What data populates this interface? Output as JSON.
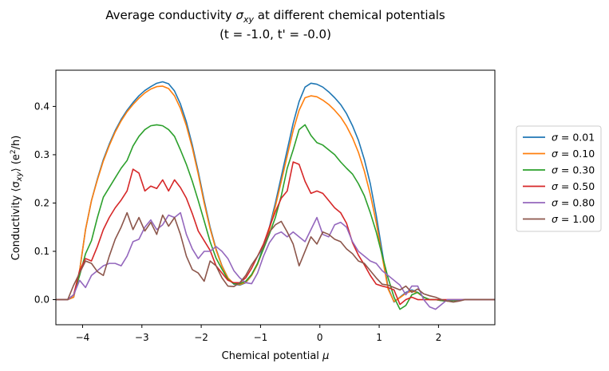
{
  "chart_data": {
    "type": "line",
    "title": "Average conductivity σxy at different chemical potentials",
    "title_parts": {
      "prefix": "Average conductivity ",
      "sigma": "σ",
      "sub": "xy",
      "suffix": " at different chemical potentials"
    },
    "subtitle": "(t = -1.0, t' = -0.0)",
    "xlabel": "Chemical potential μ",
    "xlabel_parts": {
      "text": "Chemical potential ",
      "mu": "μ"
    },
    "ylabel": "Conductivity ⟨σxy⟩ (e²/h)",
    "ylabel_parts": {
      "a": "Conductivity ⟨σ",
      "sub": "xy",
      "b": "⟩ (e",
      "sup": "2",
      "c": "/h)"
    },
    "xlim": [
      -4.45,
      2.95
    ],
    "ylim": [
      -0.052,
      0.475
    ],
    "xticks": [
      -4,
      -3,
      -2,
      -1,
      0,
      1,
      2
    ],
    "xtick_labels": [
      "−4",
      "−3",
      "−2",
      "−1",
      "0",
      "1",
      "2"
    ],
    "yticks": [
      0.0,
      0.1,
      0.2,
      0.3,
      0.4
    ],
    "ytick_labels": [
      "0.0",
      "0.1",
      "0.2",
      "0.3",
      "0.4"
    ],
    "grid": false,
    "legend_position": "outside-right",
    "x": [
      -4.45,
      -4.35,
      -4.25,
      -4.15,
      -4.05,
      -3.95,
      -3.85,
      -3.75,
      -3.65,
      -3.55,
      -3.45,
      -3.35,
      -3.25,
      -3.15,
      -3.05,
      -2.95,
      -2.85,
      -2.75,
      -2.65,
      -2.55,
      -2.45,
      -2.35,
      -2.25,
      -2.15,
      -2.05,
      -1.95,
      -1.85,
      -1.75,
      -1.65,
      -1.55,
      -1.45,
      -1.35,
      -1.25,
      -1.15,
      -1.05,
      -0.95,
      -0.85,
      -0.75,
      -0.65,
      -0.55,
      -0.45,
      -0.35,
      -0.25,
      -0.15,
      -0.05,
      0.05,
      0.15,
      0.25,
      0.35,
      0.45,
      0.55,
      0.65,
      0.75,
      0.85,
      0.95,
      1.05,
      1.15,
      1.25,
      1.35,
      1.45,
      1.55,
      1.65,
      1.75,
      1.85,
      1.95,
      2.05,
      2.15,
      2.25,
      2.35,
      2.45,
      2.55,
      2.65,
      2.75,
      2.85,
      2.95
    ],
    "series": [
      {
        "name": "σ = 0.01",
        "label_prefix": "σ = ",
        "label_value": "0.01",
        "color": "#1f77b4",
        "values": [
          0.0,
          0.0,
          0.0,
          0.005,
          0.06,
          0.145,
          0.205,
          0.25,
          0.29,
          0.322,
          0.35,
          0.373,
          0.392,
          0.408,
          0.422,
          0.433,
          0.441,
          0.448,
          0.451,
          0.447,
          0.432,
          0.405,
          0.368,
          0.32,
          0.265,
          0.205,
          0.15,
          0.105,
          0.07,
          0.045,
          0.032,
          0.03,
          0.035,
          0.05,
          0.075,
          0.11,
          0.15,
          0.2,
          0.255,
          0.31,
          0.365,
          0.41,
          0.44,
          0.448,
          0.446,
          0.44,
          0.43,
          0.418,
          0.404,
          0.385,
          0.36,
          0.33,
          0.29,
          0.24,
          0.175,
          0.1,
          0.025,
          -0.005,
          0.005,
          0.015,
          0.02,
          0.015,
          0.005,
          0.0,
          0.0,
          -0.002,
          -0.003,
          -0.002,
          -0.001,
          0.0,
          0.0,
          0.0,
          0.0,
          0.0,
          0.0
        ]
      },
      {
        "name": "σ = 0.10",
        "label_prefix": "σ = ",
        "label_value": "0.10",
        "color": "#ff7f0e",
        "values": [
          0.0,
          0.0,
          0.0,
          0.005,
          0.06,
          0.145,
          0.205,
          0.248,
          0.287,
          0.319,
          0.347,
          0.37,
          0.389,
          0.404,
          0.417,
          0.428,
          0.436,
          0.441,
          0.442,
          0.437,
          0.422,
          0.396,
          0.36,
          0.314,
          0.26,
          0.2,
          0.147,
          0.103,
          0.069,
          0.045,
          0.033,
          0.031,
          0.036,
          0.05,
          0.073,
          0.106,
          0.145,
          0.193,
          0.245,
          0.298,
          0.35,
          0.392,
          0.418,
          0.422,
          0.42,
          0.413,
          0.404,
          0.392,
          0.378,
          0.359,
          0.335,
          0.305,
          0.266,
          0.218,
          0.16,
          0.09,
          0.022,
          -0.004,
          0.004,
          0.013,
          0.018,
          0.014,
          0.005,
          0.0,
          0.0,
          -0.002,
          -0.003,
          -0.002,
          -0.001,
          0.0,
          0.0,
          0.0,
          0.0,
          0.0,
          0.0
        ]
      },
      {
        "name": "σ = 0.30",
        "label_prefix": "σ = ",
        "label_value": "0.30",
        "color": "#2ca02c",
        "values": [
          0.0,
          0.0,
          0.0,
          0.01,
          0.05,
          0.095,
          0.122,
          0.17,
          0.212,
          0.232,
          0.252,
          0.272,
          0.288,
          0.318,
          0.338,
          0.352,
          0.36,
          0.362,
          0.36,
          0.352,
          0.338,
          0.31,
          0.28,
          0.245,
          0.205,
          0.163,
          0.12,
          0.086,
          0.063,
          0.042,
          0.033,
          0.033,
          0.038,
          0.052,
          0.075,
          0.105,
          0.136,
          0.17,
          0.215,
          0.272,
          0.31,
          0.352,
          0.362,
          0.34,
          0.325,
          0.32,
          0.31,
          0.3,
          0.285,
          0.272,
          0.26,
          0.24,
          0.215,
          0.18,
          0.14,
          0.092,
          0.045,
          0.005,
          -0.02,
          -0.012,
          0.01,
          0.015,
          0.005,
          0.0,
          0.0,
          -0.002,
          -0.003,
          -0.002,
          -0.001,
          0.0,
          0.0,
          0.0,
          0.0,
          0.0,
          0.0
        ]
      },
      {
        "name": "σ = 0.50",
        "label_prefix": "σ = ",
        "label_value": "0.50",
        "color": "#d62728",
        "values": [
          0.0,
          0.0,
          0.0,
          0.01,
          0.06,
          0.085,
          0.08,
          0.11,
          0.145,
          0.17,
          0.19,
          0.206,
          0.225,
          0.27,
          0.262,
          0.225,
          0.235,
          0.23,
          0.248,
          0.225,
          0.248,
          0.232,
          0.21,
          0.178,
          0.142,
          0.122,
          0.102,
          0.07,
          0.055,
          0.04,
          0.035,
          0.035,
          0.045,
          0.065,
          0.09,
          0.115,
          0.15,
          0.182,
          0.21,
          0.225,
          0.285,
          0.28,
          0.245,
          0.22,
          0.225,
          0.22,
          0.205,
          0.19,
          0.18,
          0.158,
          0.118,
          0.092,
          0.072,
          0.05,
          0.032,
          0.028,
          0.025,
          0.02,
          -0.01,
          0.0,
          0.005,
          0.0,
          0.0,
          0.0,
          0.0,
          0.0,
          0.0,
          0.0,
          0.0,
          0.0,
          0.0,
          0.0,
          0.0,
          0.0,
          0.0
        ]
      },
      {
        "name": "σ = 0.80",
        "label_prefix": "σ = ",
        "label_value": "0.80",
        "color": "#9467bd",
        "values": [
          0.0,
          0.0,
          0.0,
          0.01,
          0.04,
          0.025,
          0.05,
          0.06,
          0.07,
          0.075,
          0.075,
          0.07,
          0.09,
          0.12,
          0.125,
          0.15,
          0.165,
          0.145,
          0.155,
          0.175,
          0.17,
          0.18,
          0.135,
          0.105,
          0.085,
          0.1,
          0.1,
          0.11,
          0.1,
          0.085,
          0.06,
          0.045,
          0.035,
          0.033,
          0.055,
          0.09,
          0.118,
          0.135,
          0.14,
          0.13,
          0.14,
          0.13,
          0.12,
          0.145,
          0.17,
          0.135,
          0.13,
          0.155,
          0.16,
          0.15,
          0.12,
          0.1,
          0.09,
          0.08,
          0.075,
          0.06,
          0.05,
          0.04,
          0.03,
          0.01,
          0.028,
          0.028,
          0.0,
          -0.015,
          -0.02,
          -0.01,
          0.0,
          0.0,
          0.0,
          0.0,
          0.0,
          0.0,
          0.0,
          0.0,
          0.0
        ]
      },
      {
        "name": "σ = 1.00",
        "label_prefix": "σ = ",
        "label_value": "1.00",
        "color": "#8c564b",
        "values": [
          0.0,
          0.0,
          0.0,
          0.03,
          0.055,
          0.08,
          0.075,
          0.058,
          0.05,
          0.09,
          0.125,
          0.15,
          0.18,
          0.145,
          0.17,
          0.142,
          0.16,
          0.135,
          0.175,
          0.152,
          0.17,
          0.135,
          0.09,
          0.062,
          0.055,
          0.038,
          0.08,
          0.07,
          0.045,
          0.028,
          0.027,
          0.035,
          0.05,
          0.072,
          0.09,
          0.11,
          0.14,
          0.155,
          0.162,
          0.14,
          0.115,
          0.07,
          0.1,
          0.13,
          0.115,
          0.14,
          0.135,
          0.125,
          0.12,
          0.105,
          0.095,
          0.08,
          0.075,
          0.06,
          0.045,
          0.032,
          0.03,
          0.025,
          0.02,
          0.028,
          0.015,
          0.022,
          0.012,
          0.008,
          0.005,
          0.0,
          -0.003,
          -0.005,
          -0.003,
          0.0,
          0.0,
          0.0,
          0.0,
          0.0,
          0.0
        ]
      }
    ]
  }
}
